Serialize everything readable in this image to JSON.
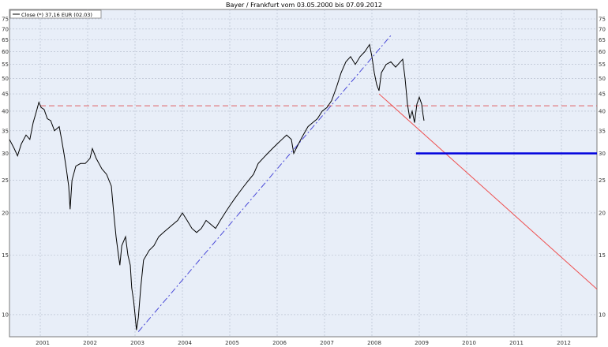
{
  "chart_data": {
    "type": "line",
    "title": "Bayer / Frankfurt     vom 03.05.2000   bis   07.09.2012",
    "y_scale": "log",
    "ylim": [
      8.6,
      80
    ],
    "xlim": [
      2000.35,
      2012.75
    ],
    "y_ticks": [
      10,
      15,
      20,
      25,
      30,
      35,
      40,
      45,
      50,
      55,
      60,
      65,
      70,
      75
    ],
    "x_ticks": [
      2001,
      2002,
      2003,
      2004,
      2005,
      2006,
      2007,
      2008,
      2009,
      2010,
      2011,
      2012
    ],
    "grid": true,
    "legend": {
      "position": "top-left",
      "label": "Close (*) 37,16 EUR (02.03)"
    },
    "colors": {
      "price": "#000000",
      "resistance": "#e06060",
      "uptrend": "#4a4ad8",
      "downtrend": "#ee5050",
      "support": "#0000dd",
      "background": "#e8eef8",
      "grid": "#b0b8c8"
    },
    "series": [
      {
        "key": "close",
        "points": [
          [
            2000.35,
            33
          ],
          [
            2000.45,
            31
          ],
          [
            2000.52,
            29.5
          ],
          [
            2000.6,
            32
          ],
          [
            2000.7,
            34
          ],
          [
            2000.78,
            33
          ],
          [
            2000.85,
            37
          ],
          [
            2000.92,
            40
          ],
          [
            2000.97,
            42.5
          ],
          [
            2001.02,
            41
          ],
          [
            2001.08,
            40.5
          ],
          [
            2001.15,
            38
          ],
          [
            2001.22,
            37.5
          ],
          [
            2001.3,
            35
          ],
          [
            2001.4,
            36
          ],
          [
            2001.45,
            33
          ],
          [
            2001.5,
            30
          ],
          [
            2001.55,
            27
          ],
          [
            2001.6,
            24
          ],
          [
            2001.63,
            20.5
          ],
          [
            2001.67,
            25
          ],
          [
            2001.75,
            27.5
          ],
          [
            2001.85,
            28
          ],
          [
            2001.95,
            28
          ],
          [
            2002.05,
            29
          ],
          [
            2002.1,
            31
          ],
          [
            2002.18,
            29
          ],
          [
            2002.3,
            27
          ],
          [
            2002.4,
            26
          ],
          [
            2002.5,
            24
          ],
          [
            2002.55,
            20
          ],
          [
            2002.6,
            17
          ],
          [
            2002.65,
            15
          ],
          [
            2002.68,
            14
          ],
          [
            2002.72,
            16
          ],
          [
            2002.8,
            17
          ],
          [
            2002.85,
            15
          ],
          [
            2002.9,
            14
          ],
          [
            2002.93,
            12
          ],
          [
            2002.97,
            11
          ],
          [
            2003.0,
            10
          ],
          [
            2003.03,
            9
          ],
          [
            2003.07,
            9.8
          ],
          [
            2003.12,
            12
          ],
          [
            2003.18,
            14.5
          ],
          [
            2003.3,
            15.5
          ],
          [
            2003.4,
            16
          ],
          [
            2003.5,
            17
          ],
          [
            2003.6,
            17.5
          ],
          [
            2003.7,
            18
          ],
          [
            2003.8,
            18.5
          ],
          [
            2003.9,
            19
          ],
          [
            2004.0,
            20
          ],
          [
            2004.1,
            19
          ],
          [
            2004.2,
            18
          ],
          [
            2004.3,
            17.5
          ],
          [
            2004.4,
            18
          ],
          [
            2004.5,
            19
          ],
          [
            2004.6,
            18.5
          ],
          [
            2004.7,
            18
          ],
          [
            2004.8,
            19
          ],
          [
            2004.9,
            20
          ],
          [
            2005.0,
            21
          ],
          [
            2005.1,
            22
          ],
          [
            2005.2,
            23
          ],
          [
            2005.3,
            24
          ],
          [
            2005.4,
            25
          ],
          [
            2005.5,
            26
          ],
          [
            2005.6,
            28
          ],
          [
            2005.7,
            29
          ],
          [
            2005.8,
            30
          ],
          [
            2005.9,
            31
          ],
          [
            2006.0,
            32
          ],
          [
            2006.1,
            33
          ],
          [
            2006.2,
            34
          ],
          [
            2006.3,
            33
          ],
          [
            2006.35,
            30
          ],
          [
            2006.45,
            32
          ],
          [
            2006.55,
            34
          ],
          [
            2006.65,
            36
          ],
          [
            2006.75,
            37
          ],
          [
            2006.85,
            38
          ],
          [
            2006.95,
            40
          ],
          [
            2007.05,
            41
          ],
          [
            2007.15,
            43
          ],
          [
            2007.25,
            47
          ],
          [
            2007.35,
            52
          ],
          [
            2007.45,
            56
          ],
          [
            2007.55,
            58
          ],
          [
            2007.65,
            55
          ],
          [
            2007.75,
            58
          ],
          [
            2007.85,
            60
          ],
          [
            2007.95,
            63
          ],
          [
            2008.0,
            58
          ],
          [
            2008.05,
            52
          ],
          [
            2008.1,
            48
          ],
          [
            2008.15,
            46
          ],
          [
            2008.2,
            52
          ],
          [
            2008.3,
            55
          ],
          [
            2008.4,
            56
          ],
          [
            2008.5,
            54
          ],
          [
            2008.6,
            56
          ],
          [
            2008.65,
            57
          ],
          [
            2008.7,
            50
          ],
          [
            2008.75,
            42
          ],
          [
            2008.8,
            38
          ],
          [
            2008.85,
            40
          ],
          [
            2008.9,
            37
          ],
          [
            2008.95,
            42
          ],
          [
            2009.0,
            44
          ],
          [
            2009.05,
            42
          ],
          [
            2009.08,
            39
          ],
          [
            2009.1,
            37.5
          ]
        ]
      }
    ],
    "lines": [
      {
        "key": "resistance",
        "style": "dashed",
        "from": [
          2001.0,
          41.5
        ],
        "to": [
          2012.75,
          41.5
        ]
      },
      {
        "key": "uptrend",
        "style": "dashed",
        "from": [
          2003.07,
          8.9
        ],
        "to": [
          2008.4,
          67
        ]
      },
      {
        "key": "downtrend",
        "style": "solid",
        "from": [
          2008.15,
          45
        ],
        "to": [
          2012.75,
          11.9
        ]
      },
      {
        "key": "support",
        "style": "thick",
        "from": [
          2008.93,
          30
        ],
        "to": [
          2012.75,
          30
        ]
      }
    ]
  }
}
